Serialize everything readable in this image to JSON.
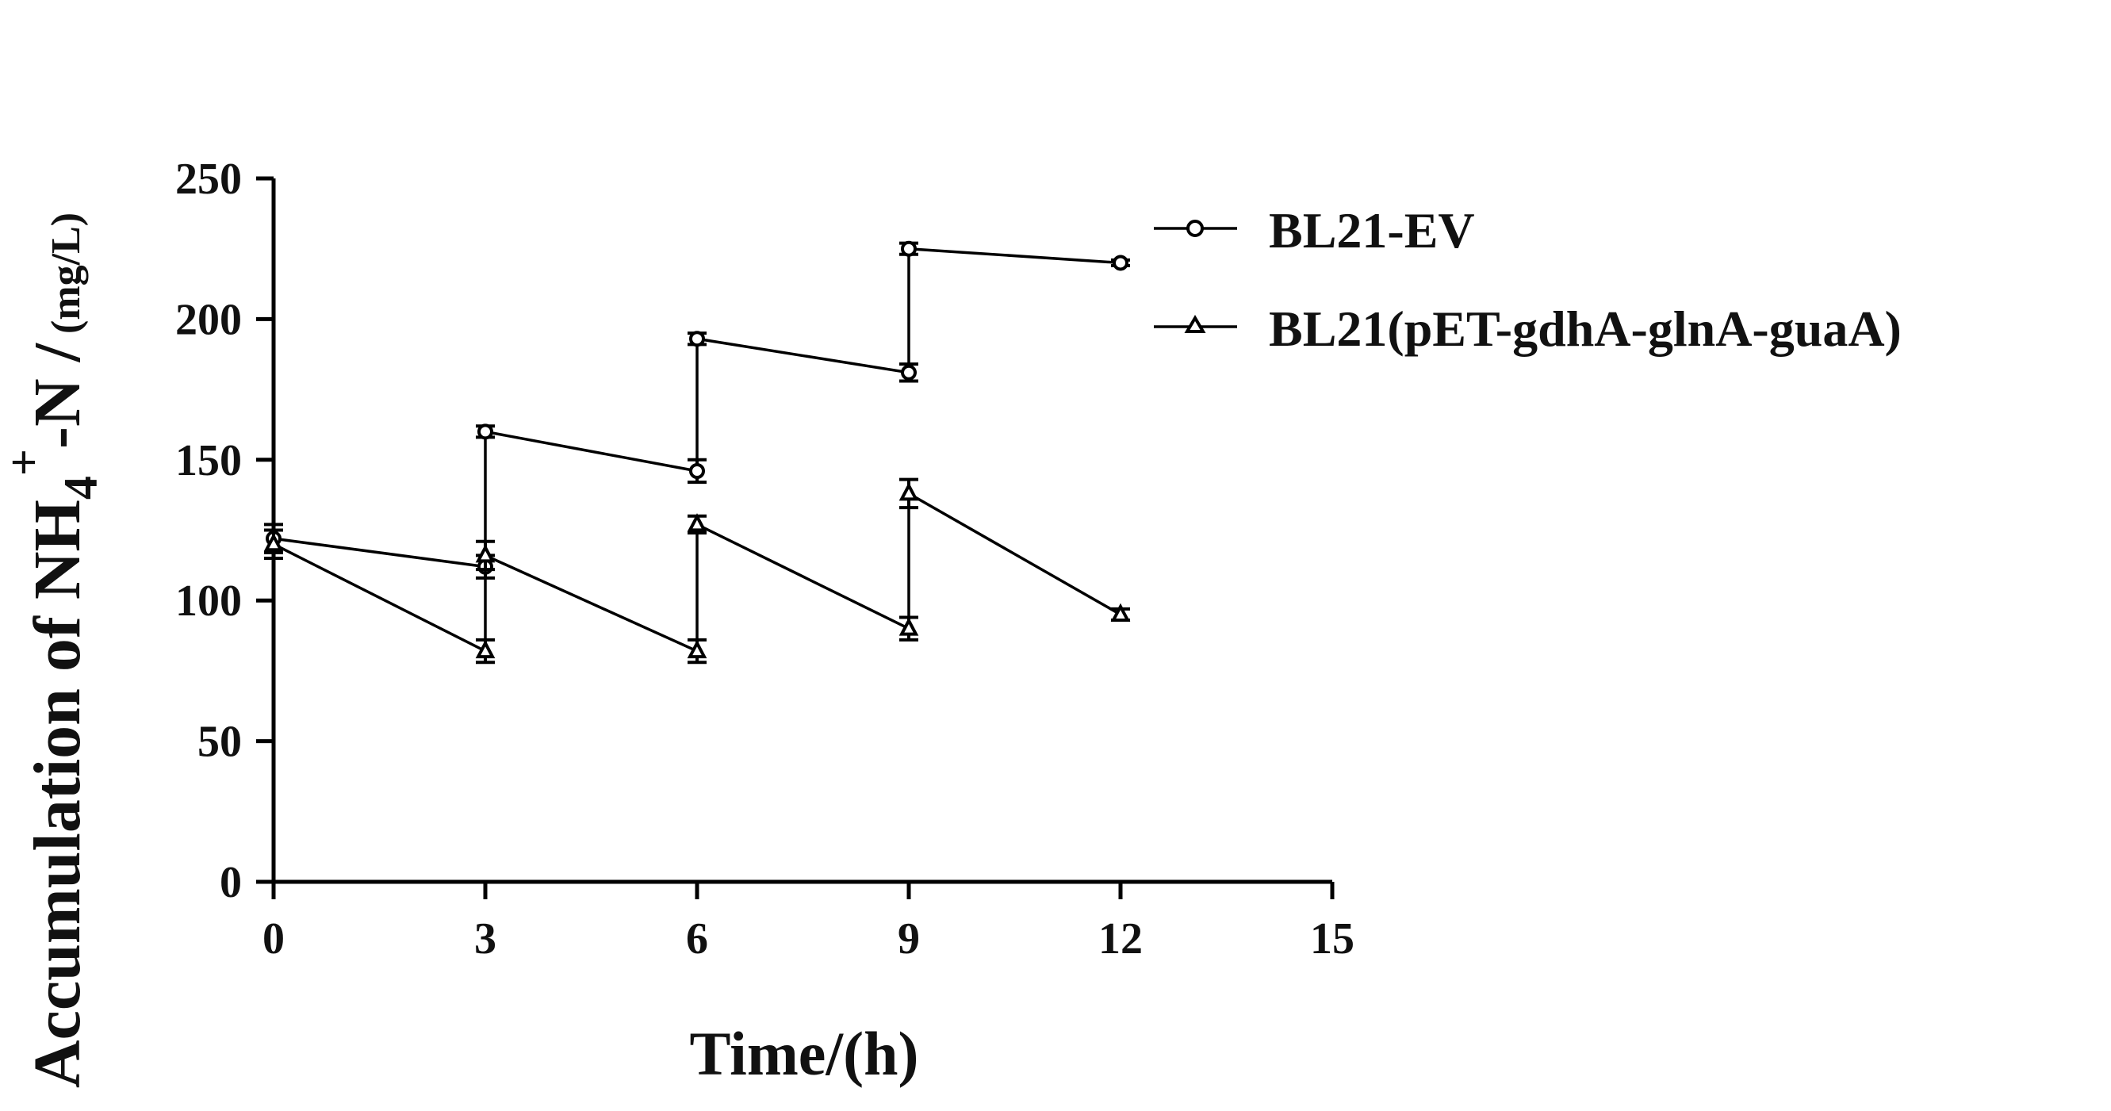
{
  "chart_data": {
    "type": "line",
    "title": "",
    "xlabel": "Time/(h)",
    "ylabel": {
      "main": "Accumulation of NH",
      "sub": "4",
      "sup": "+",
      "tail": "-N /",
      "unit": "(mg/L)"
    },
    "xlim": [
      0,
      15
    ],
    "ylim": [
      0,
      250
    ],
    "xticks": [
      "0",
      "3",
      "6",
      "9",
      "12",
      "15"
    ],
    "yticks": [
      "0",
      "50",
      "100",
      "150",
      "200",
      "250"
    ],
    "grid": false,
    "legend_position": "right",
    "series": [
      {
        "name": "BL21-EV",
        "marker": "circle",
        "points": [
          {
            "x": 0,
            "y": 122,
            "err": 5
          },
          {
            "x": 3,
            "y": 112,
            "err": 4
          },
          {
            "x": 3,
            "y": 160,
            "err": 2
          },
          {
            "x": 6,
            "y": 146,
            "err": 4
          },
          {
            "x": 6,
            "y": 193,
            "err": 2
          },
          {
            "x": 9,
            "y": 181,
            "err": 3
          },
          {
            "x": 9,
            "y": 225,
            "err": 2
          },
          {
            "x": 12,
            "y": 220,
            "err": 1
          }
        ]
      },
      {
        "name": "BL21(pET-gdhA-glnA-guaA)",
        "marker": "triangle",
        "points": [
          {
            "x": 0,
            "y": 120,
            "err": 5
          },
          {
            "x": 3,
            "y": 82,
            "err": 4
          },
          {
            "x": 3,
            "y": 116,
            "err": 5
          },
          {
            "x": 6,
            "y": 82,
            "err": 4
          },
          {
            "x": 6,
            "y": 127,
            "err": 3
          },
          {
            "x": 9,
            "y": 90,
            "err": 4
          },
          {
            "x": 9,
            "y": 138,
            "err": 5
          },
          {
            "x": 12,
            "y": 95,
            "err": 2
          }
        ]
      }
    ]
  }
}
